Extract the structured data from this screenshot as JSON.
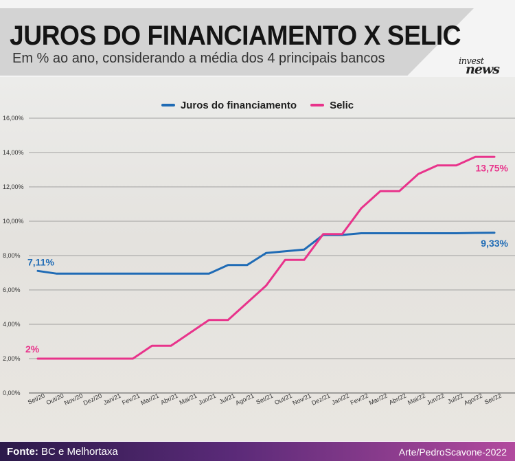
{
  "header": {
    "title": "JUROS DO FINANCIAMENTO X SELIC",
    "subtitle": "Em % ao ano, considerando a média dos 4 principais bancos"
  },
  "logo": {
    "line1": "invest",
    "line2": "news"
  },
  "footer": {
    "source_label": "Fonte:",
    "source_value": "BC e Melhortaxa",
    "credit": "Arte/PedroScavone-2022"
  },
  "chart_data": {
    "type": "line",
    "title": "JUROS DO FINANCIAMENTO X SELIC",
    "subtitle": "Em % ao ano, considerando a média dos 4 principais bancos",
    "xlabel": "",
    "ylabel": "",
    "ylim": [
      0,
      16
    ],
    "y_ticks": [
      "0,00%",
      "2,00%",
      "4,00%",
      "6,00%",
      "8,00%",
      "10,00%",
      "12,00%",
      "14,00%",
      "16,00%"
    ],
    "y_tick_values": [
      0,
      2,
      4,
      6,
      8,
      10,
      12,
      14,
      16
    ],
    "grid": true,
    "legend_position": "top-center",
    "categories": [
      "Set/20",
      "Out/20",
      "Nov/20",
      "Dez/20",
      "Jan/21",
      "Fev/21",
      "Mar/21",
      "Abr/21",
      "Mai/21",
      "Jun/21",
      "Jul/21",
      "Ago/21",
      "Set/21",
      "Out/21",
      "Nov/21",
      "Dez/21",
      "Jan/22",
      "Fev/22",
      "Mar/22",
      "Abr/22",
      "Mai/22",
      "Jun/22",
      "Jul/22",
      "Ago/22",
      "Set/22"
    ],
    "series": [
      {
        "name": "Juros do financiamento",
        "color": "#1f6bb5",
        "values": [
          7.11,
          6.95,
          6.95,
          6.95,
          6.95,
          6.95,
          6.95,
          6.95,
          6.95,
          6.95,
          7.45,
          7.45,
          8.15,
          8.25,
          8.35,
          9.2,
          9.2,
          9.3,
          9.3,
          9.3,
          9.3,
          9.3,
          9.3,
          9.32,
          9.33
        ],
        "end_label": "9,33%",
        "start_label": "7,11%"
      },
      {
        "name": "Selic",
        "color": "#e8338b",
        "values": [
          2,
          2,
          2,
          2,
          2,
          2,
          2.75,
          2.75,
          3.5,
          4.25,
          4.25,
          5.25,
          6.25,
          7.75,
          7.75,
          9.25,
          9.25,
          10.75,
          11.75,
          11.75,
          12.75,
          13.25,
          13.25,
          13.75,
          13.75
        ],
        "end_label": "13,75%",
        "start_label": "2%"
      }
    ]
  }
}
